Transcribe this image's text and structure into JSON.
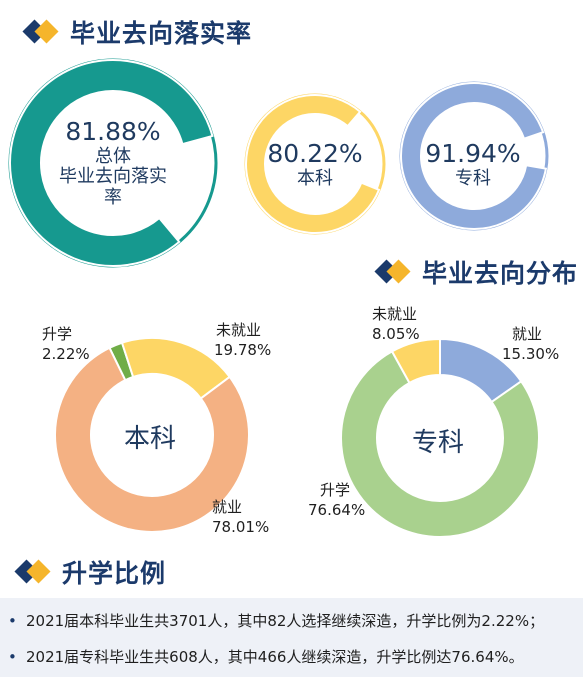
{
  "sections": {
    "rate_title": "毕业去向落实率",
    "distribution_title": "毕业去向分布",
    "further_title": "升学比例"
  },
  "icons": {
    "section_marker": "diamond-icon"
  },
  "colors": {
    "teal": "#16998f",
    "yellow": "#fdd665",
    "blue": "#8eaadb",
    "salmon": "#f4b183",
    "green": "#a9d18e",
    "darkgreen": "#70ad47",
    "navy": "#1b3a6b",
    "gold": "#f5b52b"
  },
  "chart_data": [
    {
      "type": "pie",
      "id": "overall-rate",
      "values": [
        81.88,
        18.12
      ],
      "labels": [
        "81.88%",
        ""
      ],
      "center_text": [
        "81.88%",
        "总体",
        "毕业去向落实",
        "率"
      ]
    },
    {
      "type": "pie",
      "id": "undergrad-rate",
      "values": [
        80.22,
        19.78
      ],
      "labels": [
        "80.22%",
        ""
      ],
      "center_text": [
        "80.22%",
        "本科"
      ]
    },
    {
      "type": "pie",
      "id": "junior-rate",
      "values": [
        91.94,
        8.06
      ],
      "labels": [
        "91.94%",
        ""
      ],
      "center_text": [
        "91.94%",
        "专科"
      ]
    },
    {
      "type": "pie",
      "id": "undergrad-distribution",
      "center_text": "本科",
      "categories": [
        "就业",
        "升学",
        "未就业"
      ],
      "values": [
        78.01,
        2.22,
        19.78
      ],
      "value_labels": [
        "78.01%",
        "2.22%",
        "19.78%"
      ]
    },
    {
      "type": "pie",
      "id": "junior-distribution",
      "center_text": "专科",
      "categories": [
        "就业",
        "升学",
        "未就业"
      ],
      "values": [
        15.3,
        76.64,
        8.05
      ],
      "value_labels": [
        "15.30%",
        "76.64%",
        "8.05%"
      ]
    }
  ],
  "bullets": [
    "2021届本科毕业生共3701人，其中82人选择继续深造，升学比例为2.22%；",
    "2021届专科毕业生共608人，其中466人继续深造，升学比例达76.64%。"
  ]
}
